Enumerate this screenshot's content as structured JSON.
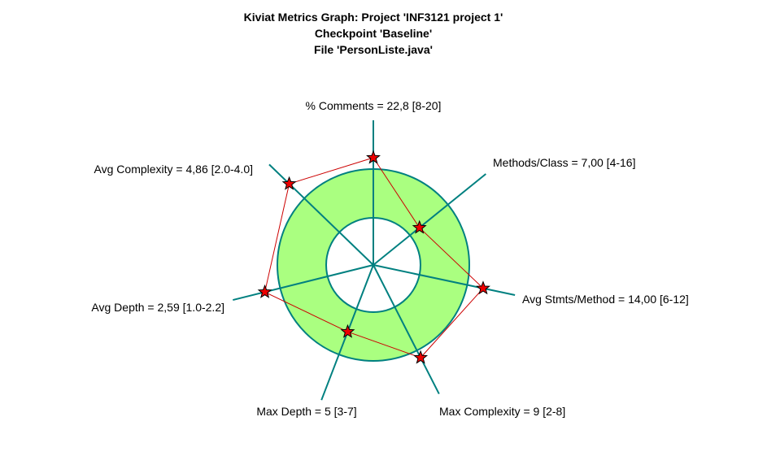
{
  "chart_data": {
    "type": "kiviat",
    "title": [
      "Kiviat Metrics Graph: Project 'INF3121 project 1'",
      "Checkpoint 'Baseline'",
      "File 'PersonListe.java'"
    ],
    "axes": [
      {
        "label": "% Comments = 22,8 [8-20]",
        "value": 22.8,
        "min": 8,
        "max": 20
      },
      {
        "label": "Methods/Class = 7,00 [4-16]",
        "value": 7.0,
        "min": 4,
        "max": 16
      },
      {
        "label": "Avg Stmts/Method = 14,00 [6-12]",
        "value": 14.0,
        "min": 6,
        "max": 12
      },
      {
        "label": "Max Complexity = 9 [2-8]",
        "value": 9,
        "min": 2,
        "max": 8
      },
      {
        "label": "Max Depth = 5 [3-7]",
        "value": 5,
        "min": 3,
        "max": 7
      },
      {
        "label": "Avg Depth = 2,59 [1.0-2.2]",
        "value": 2.59,
        "min": 1.0,
        "max": 2.2
      },
      {
        "label": "Avg Complexity = 4,86 [2.0-4.0]",
        "value": 4.86,
        "min": 2.0,
        "max": 4.0
      }
    ],
    "colors": {
      "band_fill": "#aaff80",
      "band_stroke": "#008080",
      "axis": "#008080",
      "polygon": "#cc0000",
      "marker": "#ee0000"
    }
  }
}
